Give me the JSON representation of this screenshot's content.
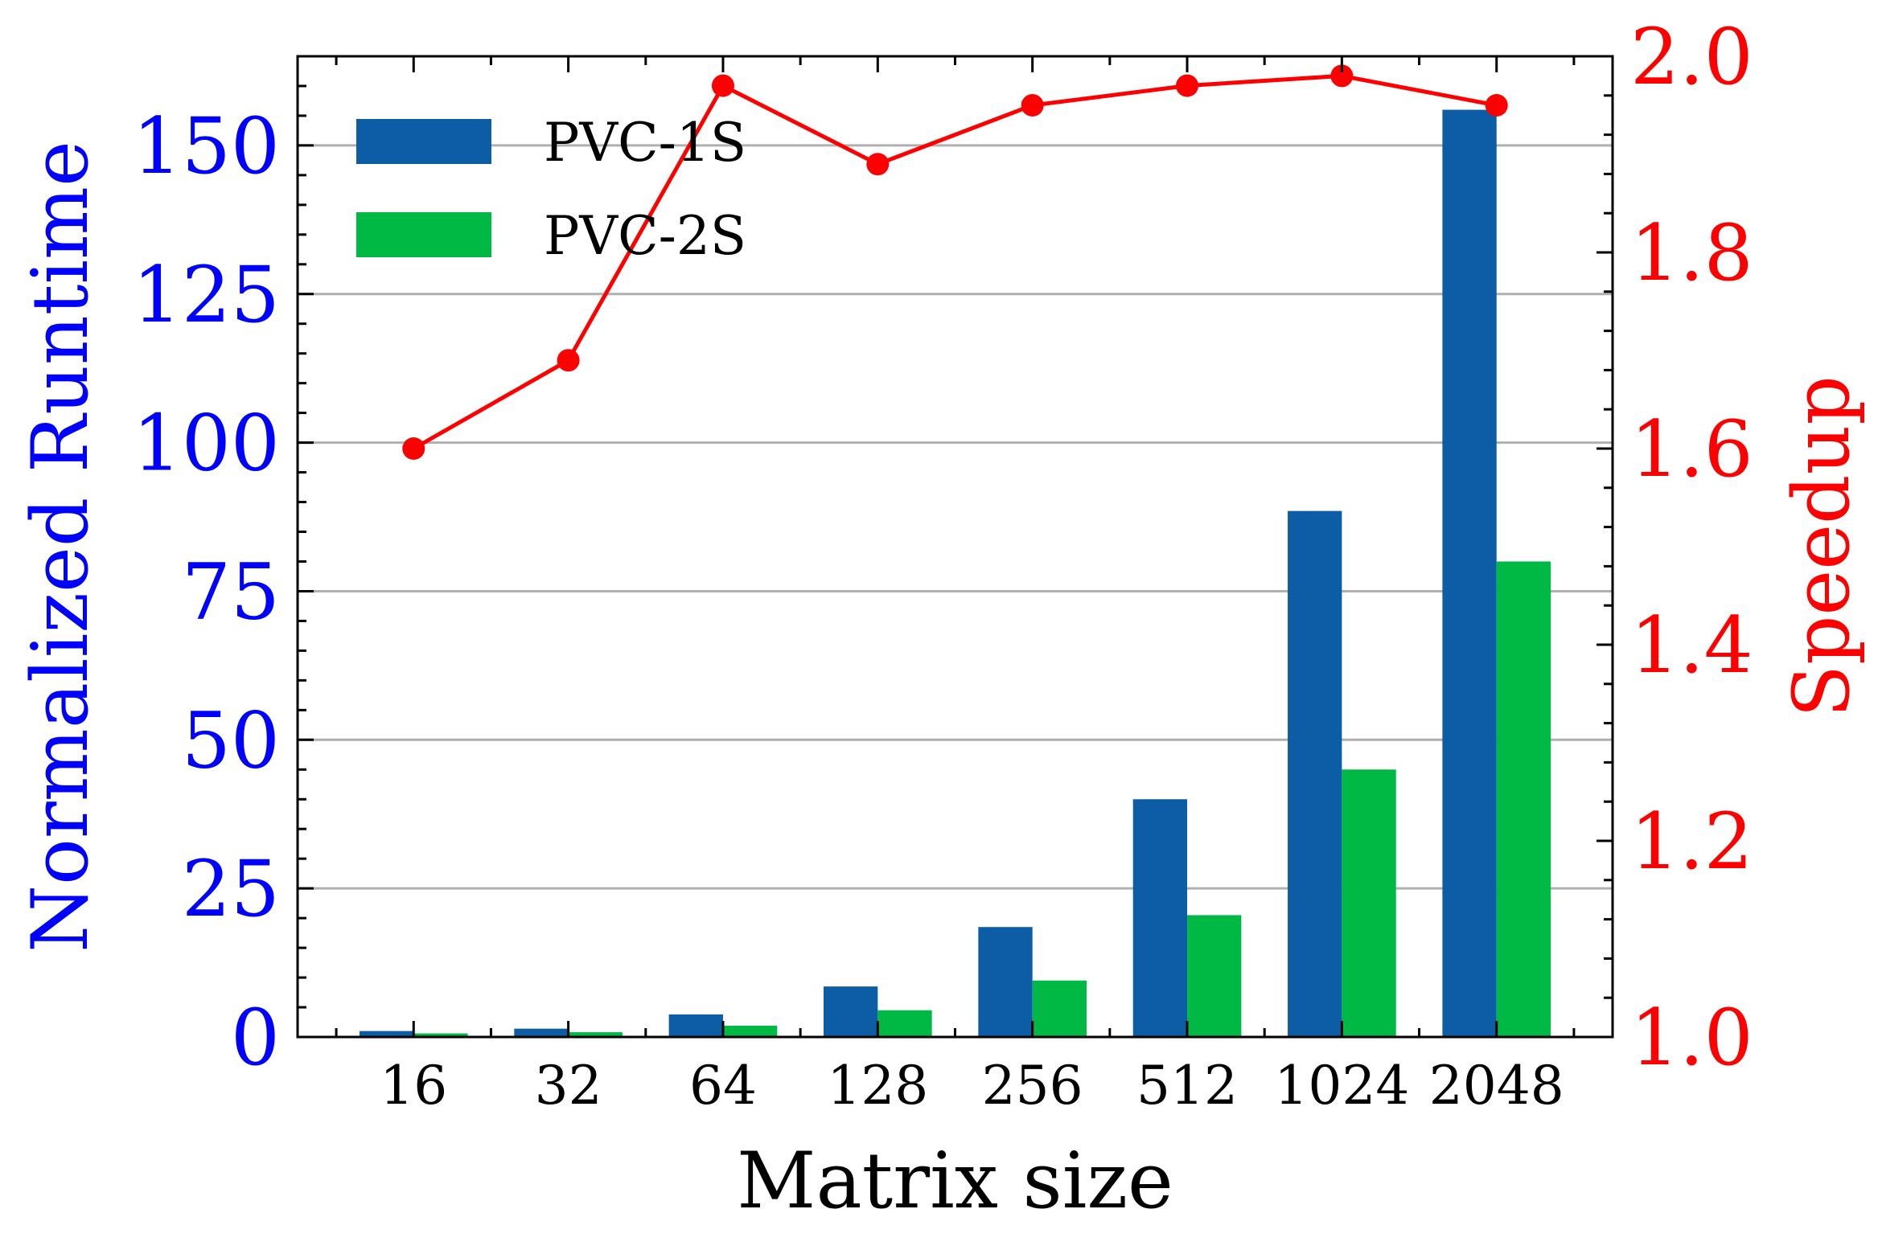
{
  "chart_data": {
    "type": "bar+line",
    "title": "",
    "xlabel": "Matrix size",
    "ylabel_left": "Normalized Runtime",
    "ylabel_right": "Speedup",
    "categories": [
      "16",
      "32",
      "64",
      "128",
      "256",
      "512",
      "1024",
      "2048"
    ],
    "series": [
      {
        "name": "PVC-1S",
        "type": "bar",
        "axis": "left",
        "color": "#0c5da5",
        "values": [
          1.0,
          1.4,
          3.8,
          8.5,
          18.5,
          40.0,
          88.5,
          156.0
        ]
      },
      {
        "name": "PVC-2S",
        "type": "bar",
        "axis": "left",
        "color": "#00b945",
        "values": [
          0.6,
          0.8,
          1.9,
          4.5,
          9.5,
          20.5,
          45.0,
          80.0
        ]
      },
      {
        "name": "Speedup",
        "type": "line",
        "axis": "right",
        "color": "#ff0000",
        "values": [
          1.6,
          1.69,
          1.97,
          1.89,
          1.95,
          1.97,
          1.98,
          1.95
        ]
      }
    ],
    "ylim_left": [
      0,
      165
    ],
    "yticks_left": [
      0,
      25,
      50,
      75,
      100,
      125,
      150
    ],
    "ylim_right": [
      1.0,
      2.0
    ],
    "yticks_right": [
      "1.0",
      "1.2",
      "1.4",
      "1.6",
      "1.8",
      "2.0"
    ],
    "grid": "horizontal",
    "legend_position": "top-left",
    "colors": {
      "left_axis": "#0000ff",
      "right_axis": "#ff0000",
      "grid": "#b0b0b0"
    }
  }
}
